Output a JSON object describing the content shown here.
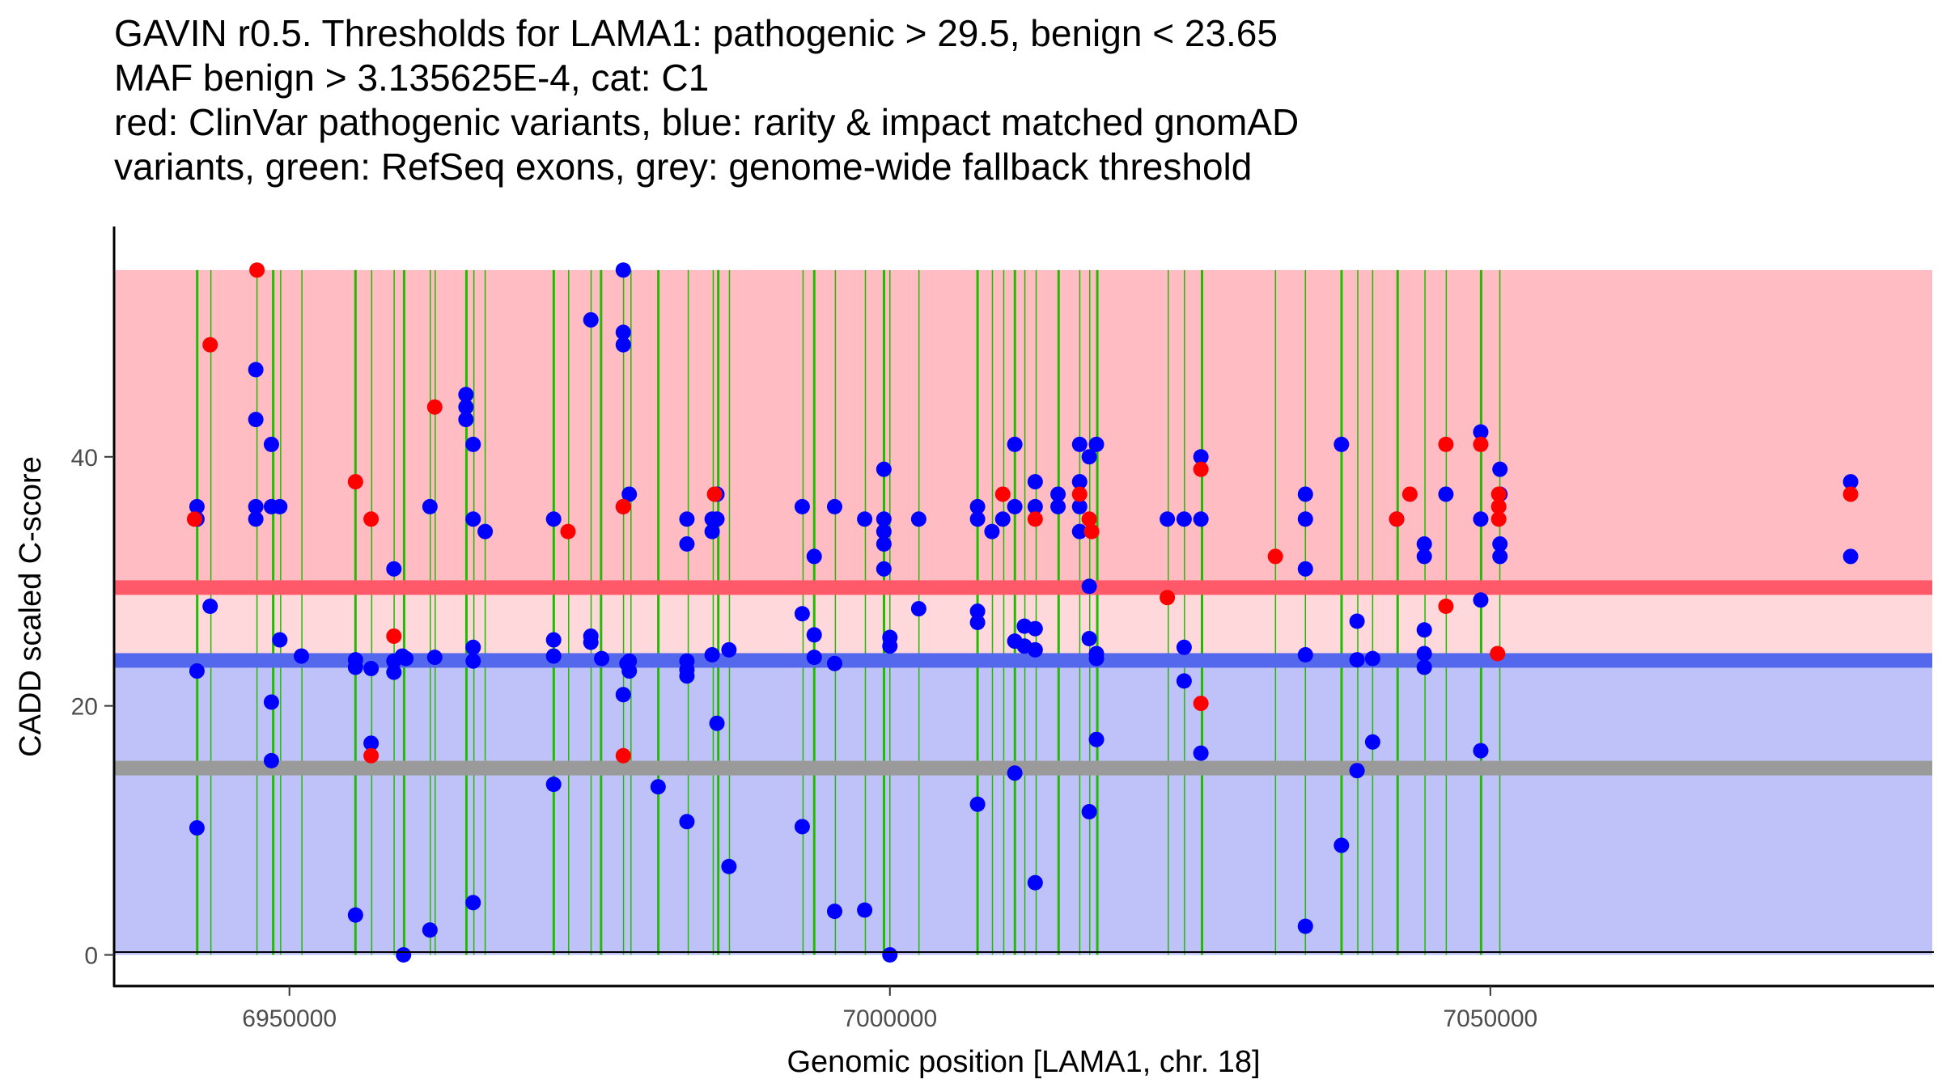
{
  "chart_data": {
    "type": "scatter",
    "title_lines": [
      "GAVIN r0.5. Thresholds for LAMA1: pathogenic > 29.5, benign < 23.65",
      "MAF benign > 3.135625E-4, cat: C1",
      "red: ClinVar pathogenic variants, blue: rarity & impact matched gnomAD",
      "variants, green: RefSeq exons, grey: genome-wide fallback threshold"
    ],
    "xlabel": "Genomic position [LAMA1, chr. 18]",
    "ylabel": "CADD scaled C-score",
    "xlim": [
      6935400,
      7086800
    ],
    "ylim": [
      -2.5,
      58.5
    ],
    "x_ticks": [
      6950000,
      7000000,
      7050000
    ],
    "x_tick_labels": [
      "6950000",
      "7000000",
      "7050000"
    ],
    "y_ticks": [
      0,
      20,
      40
    ],
    "y_tick_labels": [
      "0",
      "20",
      "40"
    ],
    "grid": false,
    "legend": "none (described in title)",
    "regions": {
      "pathogenic_zone": {
        "from": 29.5,
        "to": 55,
        "color": "#FFBDC3"
      },
      "grey_zone": {
        "from": 23.65,
        "to": 29.5,
        "color": "#FFD8DC"
      },
      "benign_zone": {
        "from": 0,
        "to": 23.65,
        "color": "#BEC2F9"
      },
      "region_x_end": 7050800
    },
    "threshold_lines": [
      {
        "name": "pathogenic threshold",
        "value": 29.5,
        "color": "#FF5868"
      },
      {
        "name": "benign threshold",
        "value": 23.65,
        "color": "#5468EE"
      },
      {
        "name": "genome-wide fallback threshold",
        "value": 15,
        "color": "#9A9A9A"
      }
    ],
    "exon_color": "#22BB00",
    "exons": [
      6942320,
      6943460,
      6947300,
      6948650,
      6949270,
      6951040,
      6955500,
      6956850,
      6958720,
      6959550,
      6961730,
      6962140,
      6964740,
      6965360,
      6966300,
      6972010,
      6973250,
      6975120,
      6975950,
      6977820,
      6978440,
      6980720,
      6983210,
      6985290,
      6985710,
      6986640,
      6992770,
      6993700,
      6995460,
      6997960,
      6999510,
      7000000,
      7002420,
      7007300,
      7008540,
      7009480,
      7010410,
      7011240,
      7012180,
      7014050,
      7015810,
      7016640,
      7017270,
      7023180,
      7024530,
      7025990,
      7032110,
      7034600,
      7037610,
      7038960,
      7040200,
      7042280,
      7044560,
      7046330,
      7049230,
      7050790
    ],
    "series": [
      {
        "name": "gnomAD (blue)",
        "color": "#0000FF",
        "points": [
          [
            6942300,
            36
          ],
          [
            6942300,
            35
          ],
          [
            6942300,
            22.8
          ],
          [
            6942300,
            10.2
          ],
          [
            6943400,
            28
          ],
          [
            6947200,
            47
          ],
          [
            6947200,
            43
          ],
          [
            6947200,
            36
          ],
          [
            6947200,
            35
          ],
          [
            6948500,
            41
          ],
          [
            6948500,
            36
          ],
          [
            6948500,
            20.3
          ],
          [
            6948500,
            15.6
          ],
          [
            6949200,
            36
          ],
          [
            6949200,
            25.3
          ],
          [
            6951000,
            24
          ],
          [
            6955500,
            23.7
          ],
          [
            6955500,
            23.1
          ],
          [
            6955500,
            3.2
          ],
          [
            6956800,
            23
          ],
          [
            6956800,
            17
          ],
          [
            6958700,
            31
          ],
          [
            6958700,
            23.6
          ],
          [
            6958700,
            22.7
          ],
          [
            6959400,
            24
          ],
          [
            6959700,
            23.8
          ],
          [
            6959500,
            0
          ],
          [
            6961700,
            36
          ],
          [
            6961700,
            2
          ],
          [
            6962100,
            23.9
          ],
          [
            6964700,
            45
          ],
          [
            6964700,
            44
          ],
          [
            6964700,
            43
          ],
          [
            6965300,
            41
          ],
          [
            6965300,
            35
          ],
          [
            6965300,
            24.7
          ],
          [
            6965300,
            23.6
          ],
          [
            6965300,
            4.2
          ],
          [
            6966300,
            34
          ],
          [
            6972000,
            35
          ],
          [
            6972000,
            25.3
          ],
          [
            6972000,
            24
          ],
          [
            6972000,
            13.7
          ],
          [
            6975100,
            51
          ],
          [
            6975100,
            25.6
          ],
          [
            6975100,
            25.1
          ],
          [
            6976000,
            23.8
          ],
          [
            6977800,
            55
          ],
          [
            6977800,
            50
          ],
          [
            6977800,
            49
          ],
          [
            6977800,
            36
          ],
          [
            6977800,
            20.9
          ],
          [
            6978300,
            37
          ],
          [
            6978300,
            23.6
          ],
          [
            6978300,
            22.8
          ],
          [
            6978100,
            23.4
          ],
          [
            6980700,
            13.5
          ],
          [
            6983100,
            35
          ],
          [
            6983100,
            33
          ],
          [
            6983100,
            23.6
          ],
          [
            6983100,
            22.9
          ],
          [
            6983100,
            22.4
          ],
          [
            6983100,
            10.7
          ],
          [
            6985200,
            35
          ],
          [
            6985200,
            34
          ],
          [
            6985200,
            24.1
          ],
          [
            6985600,
            37
          ],
          [
            6985600,
            35
          ],
          [
            6985600,
            18.6
          ],
          [
            6986600,
            24.5
          ],
          [
            6986600,
            7.1
          ],
          [
            6992700,
            36
          ],
          [
            6992700,
            27.4
          ],
          [
            6992700,
            10.3
          ],
          [
            6993700,
            32
          ],
          [
            6993700,
            25.7
          ],
          [
            6993700,
            23.9
          ],
          [
            6995400,
            36
          ],
          [
            6995400,
            23.4
          ],
          [
            6995400,
            3.5
          ],
          [
            6997900,
            35
          ],
          [
            6997900,
            3.6
          ],
          [
            6999500,
            39
          ],
          [
            6999500,
            35
          ],
          [
            6999500,
            34
          ],
          [
            6999500,
            33
          ],
          [
            6999500,
            31
          ],
          [
            7000000,
            25.5
          ],
          [
            7000000,
            24.8
          ],
          [
            7000000,
            0
          ],
          [
            7002400,
            35
          ],
          [
            7002400,
            27.8
          ],
          [
            7007300,
            36
          ],
          [
            7007300,
            35
          ],
          [
            7007300,
            27.6
          ],
          [
            7007300,
            26.7
          ],
          [
            7007300,
            12.1
          ],
          [
            7008500,
            34
          ],
          [
            7009400,
            35
          ],
          [
            7010400,
            41
          ],
          [
            7010400,
            36
          ],
          [
            7010400,
            25.2
          ],
          [
            7010400,
            14.6
          ],
          [
            7011200,
            26.4
          ],
          [
            7011200,
            24.8
          ],
          [
            7012100,
            38
          ],
          [
            7012100,
            36
          ],
          [
            7012100,
            26.2
          ],
          [
            7012100,
            24.5
          ],
          [
            7012100,
            5.8
          ],
          [
            7014000,
            37
          ],
          [
            7014000,
            36
          ],
          [
            7015800,
            41
          ],
          [
            7015800,
            38
          ],
          [
            7015800,
            36
          ],
          [
            7015800,
            34
          ],
          [
            7016600,
            40
          ],
          [
            7016600,
            29.6
          ],
          [
            7016600,
            25.4
          ],
          [
            7016600,
            11.5
          ],
          [
            7017200,
            41
          ],
          [
            7017200,
            24.2
          ],
          [
            7017200,
            23.8
          ],
          [
            7017200,
            17.3
          ],
          [
            7023100,
            35
          ],
          [
            7024500,
            35
          ],
          [
            7024500,
            24.7
          ],
          [
            7024500,
            22
          ],
          [
            7025900,
            40
          ],
          [
            7025900,
            35
          ],
          [
            7025900,
            16.2
          ],
          [
            7034600,
            37
          ],
          [
            7034600,
            35
          ],
          [
            7034600,
            31
          ],
          [
            7034600,
            24.1
          ],
          [
            7034600,
            2.3
          ],
          [
            7037600,
            41
          ],
          [
            7037600,
            8.8
          ],
          [
            7038900,
            26.8
          ],
          [
            7038900,
            23.7
          ],
          [
            7038900,
            14.8
          ],
          [
            7040200,
            23.8
          ],
          [
            7040200,
            17.1
          ],
          [
            7042200,
            35
          ],
          [
            7044500,
            33
          ],
          [
            7044500,
            32
          ],
          [
            7044500,
            26.1
          ],
          [
            7044500,
            24.2
          ],
          [
            7044500,
            23.1
          ],
          [
            7046300,
            37
          ],
          [
            7049200,
            42
          ],
          [
            7049200,
            35
          ],
          [
            7049200,
            28.5
          ],
          [
            7049200,
            16.4
          ],
          [
            7050800,
            39
          ],
          [
            7050800,
            37
          ],
          [
            7050800,
            33
          ],
          [
            7050800,
            32
          ],
          [
            7080000,
            38
          ],
          [
            7080000,
            32
          ]
        ]
      },
      {
        "name": "ClinVar pathogenic (red)",
        "color": "#FF0000",
        "points": [
          [
            6942100,
            35
          ],
          [
            6943400,
            49
          ],
          [
            6947300,
            55
          ],
          [
            6955500,
            38
          ],
          [
            6956800,
            35
          ],
          [
            6958700,
            25.6
          ],
          [
            6956800,
            16
          ],
          [
            6962100,
            44
          ],
          [
            6973200,
            34
          ],
          [
            6977800,
            36
          ],
          [
            6977800,
            16
          ],
          [
            6985400,
            37
          ],
          [
            7009400,
            37
          ],
          [
            7012100,
            35
          ],
          [
            7015800,
            37
          ],
          [
            7016600,
            35
          ],
          [
            7016800,
            34
          ],
          [
            7023100,
            28.7
          ],
          [
            7025900,
            20.2
          ],
          [
            7025900,
            39
          ],
          [
            7032100,
            32
          ],
          [
            7042200,
            35
          ],
          [
            7043300,
            37
          ],
          [
            7046300,
            41
          ],
          [
            7046300,
            28
          ],
          [
            7049200,
            41
          ],
          [
            7050700,
            37
          ],
          [
            7050700,
            36
          ],
          [
            7050700,
            35
          ],
          [
            7050600,
            24.2
          ],
          [
            7080000,
            37
          ]
        ]
      }
    ]
  }
}
